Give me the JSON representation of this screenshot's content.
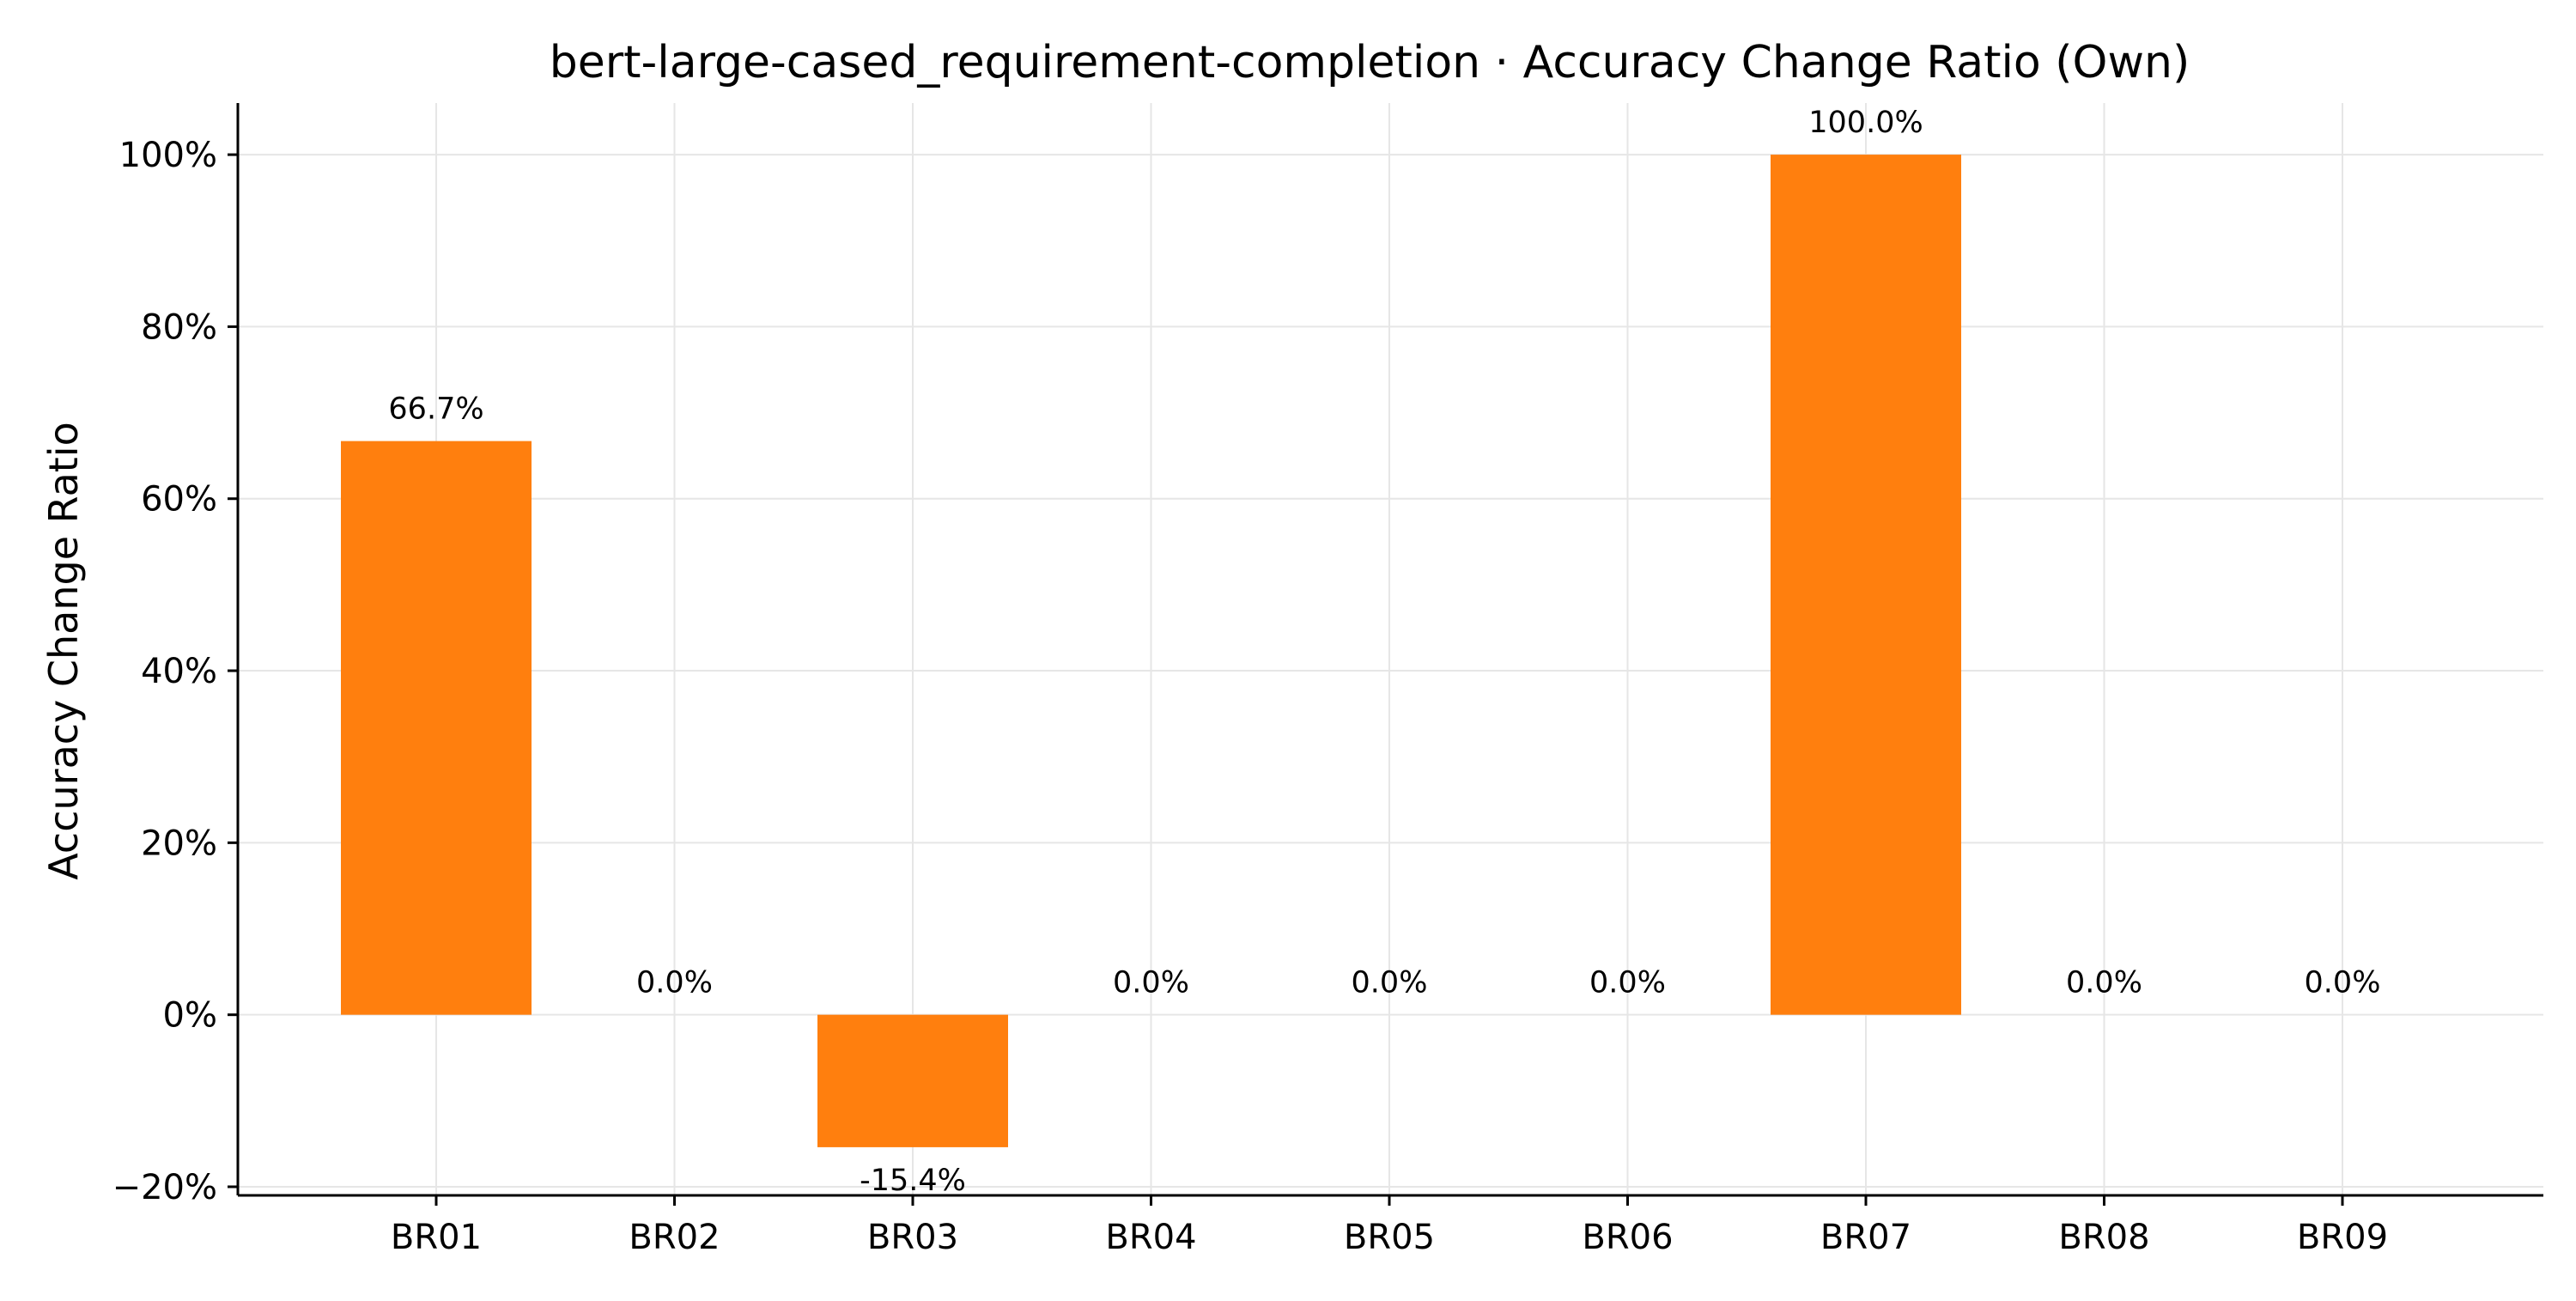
{
  "chart_data": {
    "type": "bar",
    "title": "bert-large-cased_requirement-completion · Accuracy Change Ratio (Own)",
    "xlabel": "",
    "ylabel": "Accuracy Change Ratio",
    "categories": [
      "BR01",
      "BR02",
      "BR03",
      "BR04",
      "BR05",
      "BR06",
      "BR07",
      "BR08",
      "BR09"
    ],
    "values": [
      66.7,
      0.0,
      -15.4,
      0.0,
      0.0,
      0.0,
      100.0,
      0.0,
      0.0
    ],
    "data_labels": [
      "66.7%",
      "0.0%",
      "-15.4%",
      "0.0%",
      "0.0%",
      "0.0%",
      "100.0%",
      "0.0%",
      "0.0%"
    ],
    "yticks": [
      -20,
      0,
      20,
      40,
      60,
      80,
      100
    ],
    "ytick_labels": [
      "−20%",
      "0%",
      "20%",
      "40%",
      "60%",
      "80%",
      "100%"
    ],
    "ylim": [
      -21,
      106
    ],
    "grid": true,
    "legend": "none",
    "bar_color": "#ff7f0e"
  }
}
